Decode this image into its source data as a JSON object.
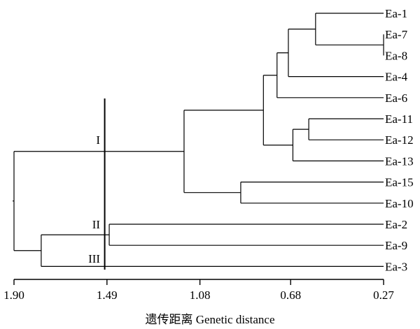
{
  "leaves": [
    {
      "id": "Ea-1",
      "label": "Ea-1"
    },
    {
      "id": "Ea-7",
      "label": "Ea-7"
    },
    {
      "id": "Ea-8",
      "label": "Ea-8"
    },
    {
      "id": "Ea-4",
      "label": "Ea-4"
    },
    {
      "id": "Ea-6",
      "label": "Ea-6"
    },
    {
      "id": "Ea-11",
      "label": "Ea-11"
    },
    {
      "id": "Ea-12",
      "label": "Ea-12"
    },
    {
      "id": "Ea-13",
      "label": "Ea-13"
    },
    {
      "id": "Ea-15",
      "label": "Ea-15"
    },
    {
      "id": "Ea-10",
      "label": "Ea-10"
    },
    {
      "id": "Ea-2",
      "label": "Ea-2"
    },
    {
      "id": "Ea-9",
      "label": "Ea-9"
    },
    {
      "id": "Ea-3",
      "label": "Ea-3"
    }
  ],
  "merges": [
    {
      "id": "n78",
      "children": [
        "Ea-7",
        "Ea-8"
      ],
      "distance": 0.27
    },
    {
      "id": "n1",
      "children": [
        "Ea-1",
        "n78"
      ],
      "distance": 0.57
    },
    {
      "id": "n14",
      "children": [
        "n1",
        "Ea-4"
      ],
      "distance": 0.69
    },
    {
      "id": "n16",
      "children": [
        "n14",
        "Ea-6"
      ],
      "distance": 0.74
    },
    {
      "id": "n1112",
      "children": [
        "Ea-11",
        "Ea-12"
      ],
      "distance": 0.6
    },
    {
      "id": "n1113",
      "children": [
        "n1112",
        "Ea-13"
      ],
      "distance": 0.67
    },
    {
      "id": "nA",
      "children": [
        "n16",
        "n1113"
      ],
      "distance": 0.8
    },
    {
      "id": "n1510",
      "children": [
        "Ea-15",
        "Ea-10"
      ],
      "distance": 0.9
    },
    {
      "id": "nI",
      "children": [
        "nA",
        "n1510"
      ],
      "distance": 1.15
    },
    {
      "id": "nII",
      "children": [
        "Ea-2",
        "Ea-9"
      ],
      "distance": 1.48
    },
    {
      "id": "nII3",
      "children": [
        "nII",
        "Ea-3"
      ],
      "distance": 1.78
    },
    {
      "id": "root",
      "children": [
        "nI",
        "nII3"
      ],
      "distance": 1.9
    }
  ],
  "axis": {
    "min": 0.27,
    "max": 1.9,
    "ticks": [
      {
        "value": 1.9,
        "label": "1.90"
      },
      {
        "value": 1.49,
        "label": "1.49"
      },
      {
        "value": 1.08,
        "label": "1.08"
      },
      {
        "value": 0.68,
        "label": "0.68"
      },
      {
        "value": 0.27,
        "label": "0.27"
      }
    ],
    "title": "遗传距离 Genetic distance"
  },
  "cut_line": {
    "distance": 1.5
  },
  "groups": [
    {
      "label": "I",
      "distance": 1.52
    },
    {
      "label": "II",
      "distance": 1.52
    },
    {
      "label": "III",
      "distance": 1.52
    }
  ]
}
